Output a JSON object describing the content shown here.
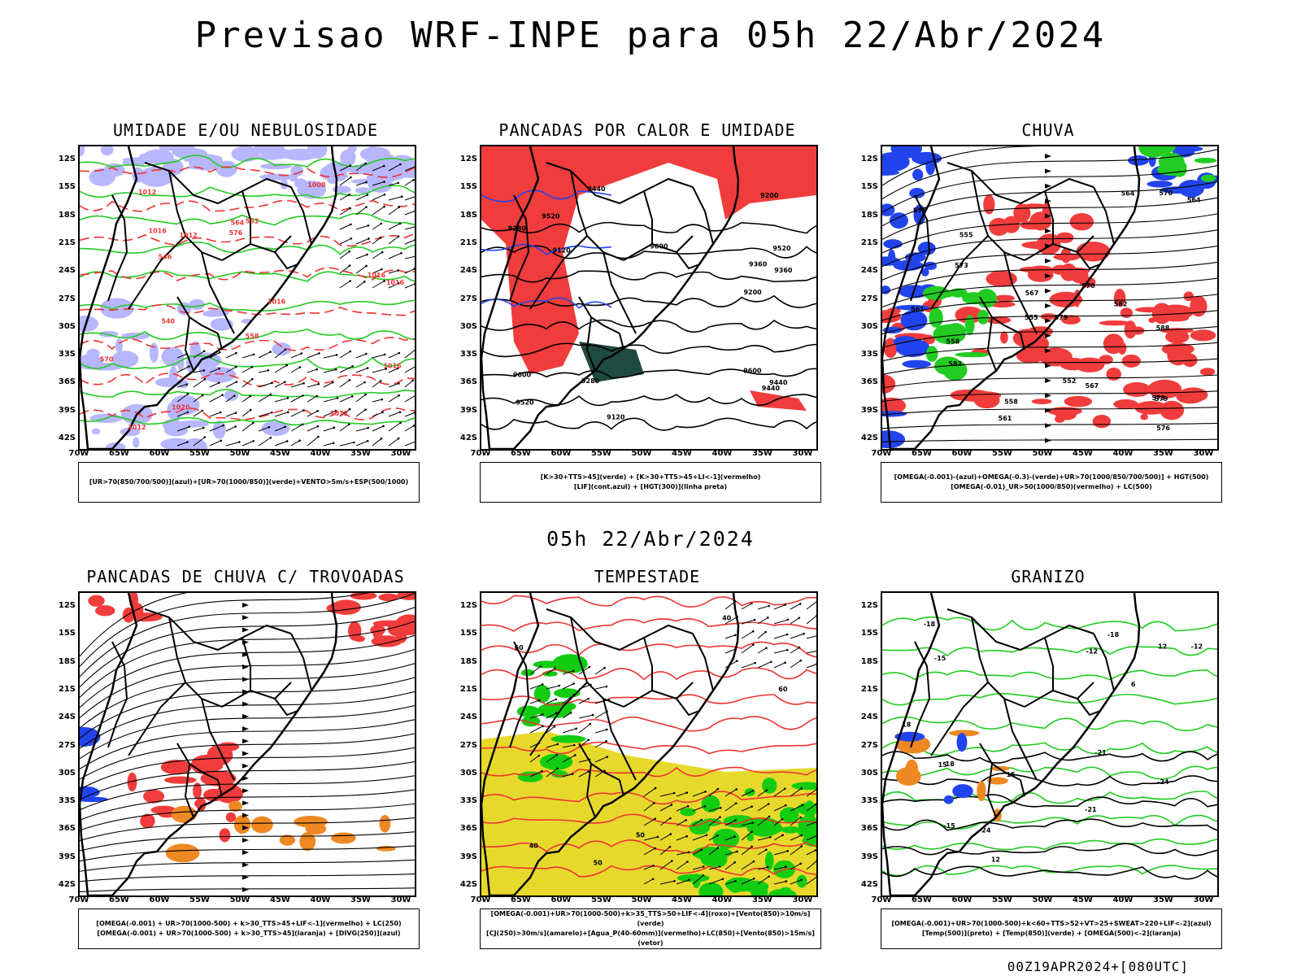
{
  "main_title": "Previsao WRF-INPE  para 05h 22/Abr/2024",
  "sub_title": "05h 22/Abr/2024",
  "footer": "00Z19APR2024+[080UTC]",
  "lat_labels": [
    "12S",
    "15S",
    "18S",
    "21S",
    "24S",
    "27S",
    "30S",
    "33S",
    "36S",
    "39S",
    "42S"
  ],
  "lon_labels": [
    "70W",
    "65W",
    "60W",
    "55W",
    "50W",
    "45W",
    "40W",
    "35W",
    "30W"
  ],
  "panels": [
    {
      "title": "UMIDADE E/OU NEBULOSIDADE",
      "legend": [
        "[UR>70(850/700/500)](azul)+[UR>70(1000/850)](verde)+VENTO>5m/s+ESP(500/1000)"
      ],
      "contour_labels": [
        "1012",
        "1012",
        "1016",
        "1016",
        "1020",
        "1008",
        "1012",
        "1016",
        "576",
        "570",
        "564",
        "558",
        "552",
        "546",
        "540",
        "1012",
        "1016",
        "1016"
      ]
    },
    {
      "title": "PANCADAS POR CALOR E UMIDADE",
      "legend": [
        "[K>30+TTS>45](verde) + [K>30+TTS>45+LI<-1](vermelho)",
        "[LIF](cont.azul) + [HGT(300)](linha preta)"
      ],
      "contour_labels": [
        "9600",
        "9520",
        "9440",
        "9600",
        "9520",
        "9440",
        "9360",
        "9280",
        "9200",
        "9120",
        "9360",
        "9280",
        "9200",
        "9120",
        "9600",
        "9520",
        "9440"
      ]
    },
    {
      "title": "CHUVA",
      "legend": [
        "[OMEGA(-0.001)-(azul)+OMEGA(-0.3)-(verde)+UR>70(1000/850/700/500)] + HGT(500)",
        "[OMEGA(-0.01)_UR>50(1000/850)(vermelho) + LC(500)"
      ],
      "contour_labels": [
        "588",
        "582",
        "579",
        "576",
        "573",
        "570",
        "567",
        "564",
        "561",
        "558",
        "555",
        "552",
        "582",
        "579",
        "576",
        "573",
        "570",
        "567",
        "564",
        "561",
        "558",
        "555"
      ]
    },
    {
      "title": "PANCADAS DE CHUVA C/ TROVOADAS",
      "legend": [
        "[OMEGA(-0.001) + UR>70(1000-500) + k>30_TTS>45+LIF<-1](vermelho) + LC(250)",
        "[OMEGA(-0.001) + UR>70(1000-500) + k>30_TTS>45](laranja) + [DIVG(250)](azul)"
      ],
      "contour_labels": []
    },
    {
      "title": "TEMPESTADE",
      "legend": [
        "[OMEGA(-0.001)+UR>70(1000-500)+k>35_TTS>50+LIF<-4](roxo)+[Vento(850)>10m/s](verde)",
        "[CJ(250)>30m/s](amarelo)+[Agua_P(40-60mm)](vermelho)+LC(850)+[Vento(850)>15m/s](vetor)"
      ],
      "contour_labels": [
        "60",
        "50",
        "40",
        "40",
        "50",
        "60"
      ]
    },
    {
      "title": "GRANIZO",
      "legend": [
        "[OMEGA(-0.001)+UR>70(1000-500)+k<60+TTS>52+VT>25+SWEAT>220+LIF<-2](azul)",
        "[Temp(500)](preto) + [Temp(850)](verde) + [OMEGA(500)<-2](laranja)"
      ],
      "contour_labels": [
        "-12",
        "-15",
        "-18",
        "-21",
        "-24",
        "-12",
        "-15",
        "-18",
        "-21",
        "-24",
        "12",
        "15",
        "18",
        "18",
        "15",
        "12",
        "6"
      ]
    }
  ]
}
